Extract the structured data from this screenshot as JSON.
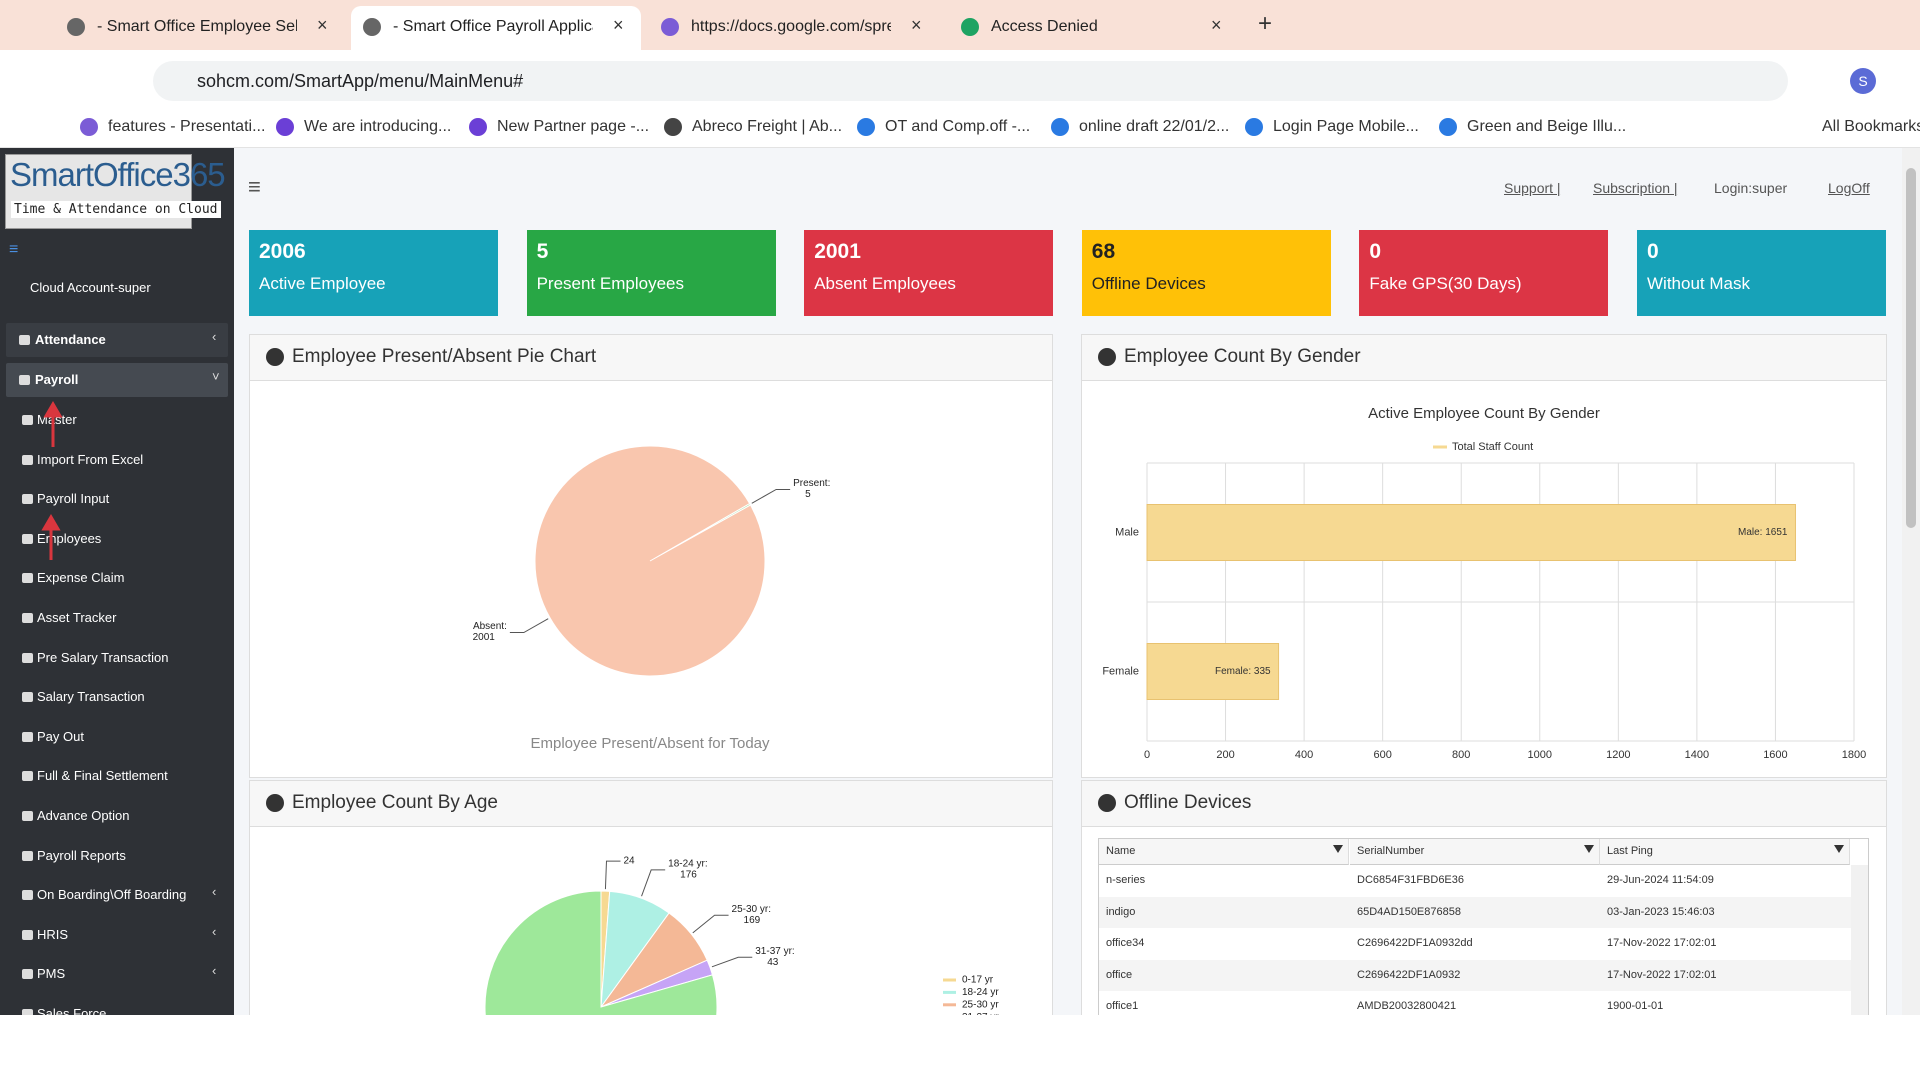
{
  "browser": {
    "tabs": [
      "- Smart Office Employee Self Se",
      "- Smart Office Payroll Applicati",
      "https://docs.google.com/sprea",
      "Access Denied"
    ],
    "url": "sohcm.com/SmartApp/menu/MainMenu#",
    "bookmarks": [
      "features - Presentati...",
      "We are introducing...",
      "New Partner page -...",
      "Abreco Freight | Ab...",
      "OT and Comp.off -...",
      "online draft 22/01/2...",
      "Login Page Mobile...",
      "Green and Beige Illu..."
    ],
    "all_bookmarks": "All Bookmarks",
    "profile": "S"
  },
  "sidebar": {
    "logo_title": "SmartOffice365",
    "logo_subtitle": "Time & Attendance on Cloud",
    "account": "Cloud Account-super",
    "menu": [
      {
        "label": "Attendance",
        "section": true,
        "submenu": true
      },
      {
        "label": "Payroll",
        "section": true,
        "submenu": true,
        "open": true
      },
      {
        "label": "Master"
      },
      {
        "label": "Import From Excel"
      },
      {
        "label": "Payroll Input"
      },
      {
        "label": "Employees"
      },
      {
        "label": "Expense Claim"
      },
      {
        "label": "Asset Tracker"
      },
      {
        "label": "Pre Salary Transaction"
      },
      {
        "label": "Salary Transaction"
      },
      {
        "label": "Pay Out"
      },
      {
        "label": "Full & Final Settlement"
      },
      {
        "label": "Advance Option"
      },
      {
        "label": "Payroll Reports"
      },
      {
        "label": "On Boarding\\Off Boarding",
        "submenu": true
      },
      {
        "label": "HRIS",
        "submenu": true
      },
      {
        "label": "PMS",
        "submenu": true
      },
      {
        "label": "Sales Force"
      }
    ]
  },
  "header_links": [
    "Support |",
    "Subscription |",
    "Login:super",
    "LogOff"
  ],
  "cards": [
    {
      "value": 2006,
      "label": "Active Employee",
      "color": "#17a2b8"
    },
    {
      "value": 5,
      "label": "Present Employees",
      "color": "#28a745"
    },
    {
      "value": 2001,
      "label": "Absent Employees",
      "color": "#dc3545"
    },
    {
      "value": 68,
      "label": "Offline Devices",
      "color": "#ffc107"
    },
    {
      "value": 0,
      "label": "Fake GPS(30 Days)",
      "color": "#dc3545"
    },
    {
      "value": 0,
      "label": "Without Mask",
      "color": "#17a2b8"
    }
  ],
  "panels": [
    "Employee Present/Absent Pie Chart",
    "Employee Count By Gender",
    "Employee Count By Age",
    "Offline Devices"
  ],
  "chart_data": [
    {
      "type": "pie",
      "subtitle": "Employee Present/Absent for Today",
      "categories": [
        "Present:",
        "Absent:"
      ],
      "values": [
        5,
        2001
      ],
      "colors": [
        "#b9e4b3",
        "#f9c6ae"
      ]
    },
    {
      "type": "bar",
      "orientation": "horizontal",
      "title": "Active Employee Count By Gender",
      "categories": [
        "Male",
        "Female"
      ],
      "series": [
        {
          "name": "Total Staff Count",
          "color": "#f6d992",
          "values": [
            1651,
            335
          ],
          "value_labels": [
            "Male:  1651",
            "Female:  335"
          ]
        }
      ],
      "xlim": [
        0,
        1800
      ],
      "xticks": [
        0,
        200,
        400,
        600,
        800,
        1000,
        1200,
        1400,
        1600,
        1800
      ],
      "grid": true
    },
    {
      "type": "pie",
      "categories": [
        "0-17 yr",
        "18-24 yr",
        "25-30 yr",
        "31-37 yr",
        null
      ],
      "label_names": [
        null,
        "18-24 yr:",
        "25-30 yr:",
        "31-37 yr:",
        null
      ],
      "values": [
        24,
        176,
        169,
        43,
        1594
      ],
      "colors": [
        "#f6d992",
        "#aef0e4",
        "#f4b896",
        "#c6a4f6",
        "#9ee89a"
      ],
      "legend": true
    }
  ],
  "table": {
    "columns": [
      "Name",
      "SerialNumber",
      "Last Ping"
    ],
    "rows": [
      [
        "n-series",
        "DC6854F31FBD6E36",
        "29-Jun-2024 11:54:09"
      ],
      [
        "indigo",
        "65D4AD150E876858",
        "03-Jan-2023 15:46:03"
      ],
      [
        "office34",
        "C2696422DF1A0932dd",
        "17-Nov-2022 17:02:01"
      ],
      [
        "office",
        "C2696422DF1A0932",
        "17-Nov-2022 17:02:01"
      ],
      [
        "office1",
        "AMDB20032800421",
        "1900-01-01"
      ]
    ]
  }
}
